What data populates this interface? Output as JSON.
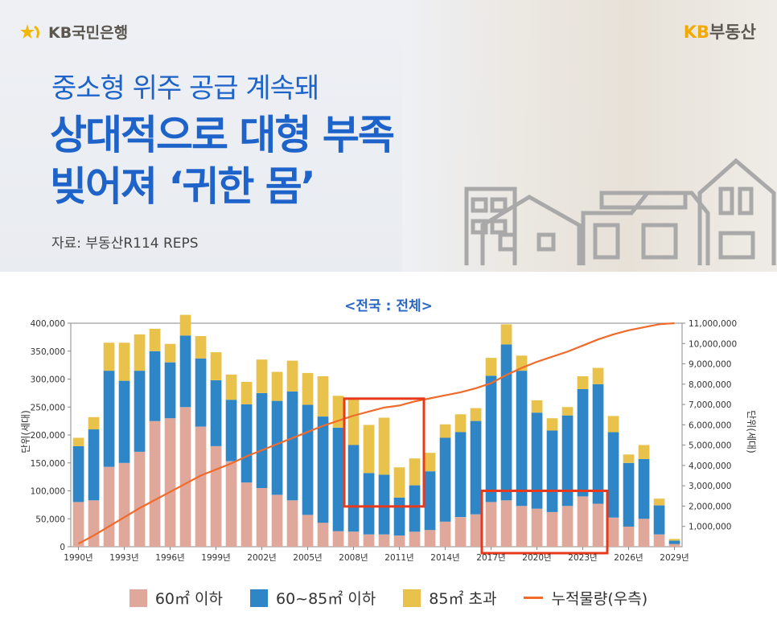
{
  "header": {
    "brand_left": "KB국민은행",
    "brand_right_a": "KB",
    "brand_right_b": "부동산",
    "subtitle": "중소형 위주 공급 계속돼",
    "title_line1": "상대적으로 대형 부족",
    "title_line2": "빚어져 ‘귀한 몸’",
    "source": "자료: 부동산R114 REPS"
  },
  "colors": {
    "small": "#e0a79b",
    "mid": "#2f86c6",
    "large": "#e8c24a",
    "cumulative": "#f06b2a",
    "highlight": "#e8391c",
    "title_blue": "#1d63c9"
  },
  "chart_data": {
    "type": "bar",
    "stacked": true,
    "title": "<전국 : 전체>",
    "ylabel": "단위(세대)",
    "ylabel_right": "단위(세대)",
    "ylim": [
      0,
      400000
    ],
    "ylim_right": [
      0,
      11000000
    ],
    "yticks": [
      "0",
      "50,000",
      "100,000",
      "150,000",
      "200,000",
      "250,000",
      "300,000",
      "350,000",
      "400,000"
    ],
    "yticks_right": [
      "1,000,000",
      "2,000,000",
      "3,000,000",
      "4,000,000",
      "5,000,000",
      "6,000,000",
      "7,000,000",
      "8,000,000",
      "9,000,000",
      "10,000,000",
      "11,000,000"
    ],
    "xtick_labels": [
      "1990년",
      "1993년",
      "1996년",
      "1999년",
      "2002년",
      "2005년",
      "2008년",
      "2011년",
      "2014년",
      "2017년",
      "2020년",
      "2023년",
      "2026년",
      "2029년"
    ],
    "categories": [
      1990,
      1991,
      1992,
      1993,
      1994,
      1995,
      1996,
      1997,
      1998,
      1999,
      2000,
      2001,
      2002,
      2003,
      2004,
      2005,
      2006,
      2007,
      2008,
      2009,
      2010,
      2011,
      2012,
      2013,
      2014,
      2015,
      2016,
      2017,
      2018,
      2019,
      2020,
      2021,
      2022,
      2023,
      2024,
      2025,
      2026,
      2027,
      2028,
      2029
    ],
    "series": [
      {
        "name": "60㎡ 이하",
        "values": [
          80000,
          83000,
          143000,
          150000,
          170000,
          225000,
          230000,
          250000,
          215000,
          180000,
          153000,
          115000,
          105000,
          93000,
          83000,
          57000,
          43000,
          28000,
          27000,
          22000,
          22000,
          20000,
          27000,
          30000,
          45000,
          53000,
          58000,
          80000,
          83000,
          73000,
          68000,
          62000,
          73000,
          90000,
          77000,
          52000,
          36000,
          50000,
          22000,
          5000
        ]
      },
      {
        "name": "60~85㎡ 이하",
        "values": [
          100000,
          127000,
          172000,
          147000,
          145000,
          125000,
          100000,
          128000,
          122000,
          118000,
          110000,
          140000,
          170000,
          168000,
          195000,
          197000,
          190000,
          185000,
          155000,
          110000,
          107000,
          68000,
          83000,
          105000,
          150000,
          152000,
          167000,
          226000,
          279000,
          242000,
          172000,
          146000,
          162000,
          192000,
          214000,
          153000,
          114000,
          107000,
          52000,
          6000
        ]
      },
      {
        "name": "85㎡ 초과",
        "values": [
          15000,
          22000,
          50000,
          68000,
          65000,
          40000,
          33000,
          37000,
          40000,
          50000,
          45000,
          40000,
          60000,
          52000,
          55000,
          57000,
          72000,
          57000,
          83000,
          86000,
          102000,
          54000,
          48000,
          33000,
          24000,
          32000,
          23000,
          32000,
          36000,
          27000,
          22000,
          22000,
          15000,
          23000,
          29000,
          29000,
          15000,
          25000,
          12000,
          3000
        ]
      },
      {
        "name": "누적물량(우측)",
        "axis": "right",
        "values": [
          150000,
          550000,
          1000000,
          1450000,
          1900000,
          2300000,
          2700000,
          3100000,
          3500000,
          3800000,
          4100000,
          4450000,
          4750000,
          5050000,
          5350000,
          5650000,
          5950000,
          6200000,
          6450000,
          6650000,
          6850000,
          6950000,
          7150000,
          7300000,
          7450000,
          7600000,
          7800000,
          8050000,
          8450000,
          8800000,
          9100000,
          9350000,
          9600000,
          9900000,
          10200000,
          10450000,
          10650000,
          10800000,
          10950000,
          11000000
        ]
      }
    ],
    "legend": [
      "60㎡ 이하",
      "60~85㎡ 이하",
      "85㎡ 초과",
      "누적물량(우측)"
    ],
    "legend_position": "bottom",
    "grid": false,
    "highlights": [
      {
        "from": 2008,
        "to": 2012
      },
      {
        "from": 2017,
        "to": 2024
      }
    ]
  }
}
